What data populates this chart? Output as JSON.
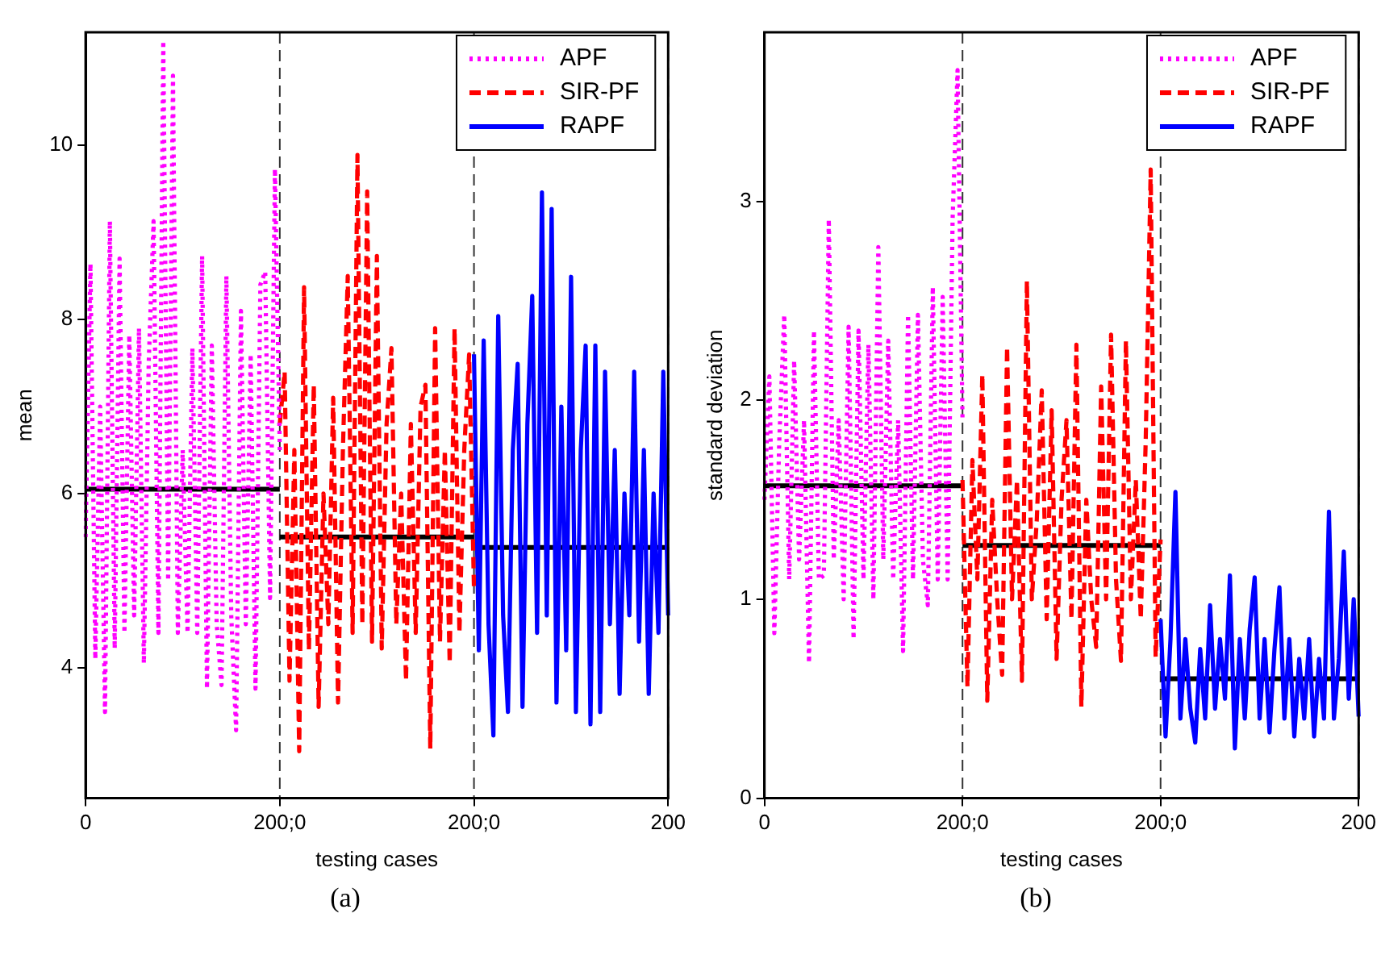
{
  "chart_data": [
    {
      "type": "line",
      "xlabel": "testing cases",
      "ylabel": "mean",
      "annotations": [
        "(a)"
      ],
      "ylim": [
        2.5,
        11.3
      ],
      "categories": [
        "0",
        null,
        null,
        null,
        null,
        null,
        null,
        null,
        null,
        null,
        null,
        null,
        null,
        null,
        null,
        null,
        null,
        null,
        null,
        null,
        null,
        null,
        null,
        null,
        null,
        null,
        null,
        null,
        null,
        null,
        null,
        null,
        null,
        null,
        null,
        null,
        null,
        null,
        null,
        null,
        "200;0",
        null,
        null,
        null,
        null,
        null,
        null,
        null,
        null,
        null,
        null,
        null,
        null,
        null,
        null,
        null,
        null,
        null,
        null,
        null,
        null,
        null,
        null,
        null,
        null,
        null,
        null,
        null,
        null,
        null,
        null,
        null,
        null,
        null,
        null,
        null,
        null,
        null,
        null,
        null,
        "200;0",
        null,
        null,
        null,
        null,
        null,
        null,
        null,
        null,
        null,
        null,
        null,
        null,
        null,
        null,
        null,
        null,
        null,
        null,
        null,
        null,
        null,
        null,
        null,
        null,
        null,
        null,
        null,
        null,
        null,
        null,
        null,
        null,
        null,
        null,
        null,
        null,
        null,
        null,
        null,
        "200"
      ],
      "yticks": [
        4,
        6,
        8,
        10
      ],
      "legend": "top right",
      "grid": "x",
      "series": [
        {
          "name": "APF",
          "color": "#ff00ff",
          "line_style": "dotted",
          "values": [
            5.5,
            8.64,
            4.1,
            7.0,
            3.49,
            9.13,
            4.22,
            8.7,
            4.4,
            7.82,
            4.6,
            7.9,
            4.05,
            7.5,
            9.13,
            4.4,
            11.2,
            5.0,
            10.8,
            4.4,
            6.5,
            4.4,
            7.67,
            4.4,
            8.73,
            3.76,
            7.7,
            4.5,
            3.8,
            8.5,
            4.6,
            3.28,
            8.1,
            4.5,
            7.6,
            3.76,
            8.4,
            8.55,
            4.8,
            9.73,
            6.5,
            null,
            null,
            null,
            null,
            null,
            null,
            null,
            null,
            null,
            null,
            null,
            null,
            null,
            null,
            null,
            null,
            null,
            null,
            null,
            null,
            null,
            null,
            null,
            null,
            null,
            null,
            null,
            null,
            null,
            null,
            null,
            null,
            null,
            null,
            null,
            null,
            null,
            null,
            null,
            null,
            null,
            null,
            null,
            null,
            null,
            null,
            null,
            null,
            null,
            null,
            null,
            null,
            null,
            null,
            null,
            null,
            null,
            null,
            null,
            null,
            null,
            null,
            null,
            null,
            null,
            null,
            null,
            null,
            null,
            null,
            null,
            null,
            null,
            null,
            null,
            null,
            null,
            null,
            null,
            null
          ]
        },
        {
          "name": "SIR-PF",
          "color": "#ff0000",
          "line_style": "dashed",
          "values": [
            null,
            null,
            null,
            null,
            null,
            null,
            null,
            null,
            null,
            null,
            null,
            null,
            null,
            null,
            null,
            null,
            null,
            null,
            null,
            null,
            null,
            null,
            null,
            null,
            null,
            null,
            null,
            null,
            null,
            null,
            null,
            null,
            null,
            null,
            null,
            null,
            null,
            null,
            null,
            null,
            6.8,
            7.4,
            3.85,
            6.5,
            3.04,
            8.37,
            4.2,
            7.25,
            3.55,
            6.0,
            4.5,
            7.1,
            3.6,
            6.5,
            8.5,
            4.4,
            9.89,
            4.5,
            9.47,
            4.3,
            8.73,
            4.22,
            6.8,
            7.67,
            4.5,
            6.0,
            3.85,
            6.8,
            4.4,
            7.0,
            7.25,
            3.07,
            7.9,
            4.3,
            6.5,
            4.05,
            7.9,
            4.4,
            6.5,
            7.6,
            4.9,
            null,
            null,
            null,
            null,
            null,
            null,
            null,
            null,
            null,
            null,
            null,
            null,
            null,
            null,
            null,
            null,
            null,
            null,
            null,
            null,
            null,
            null,
            null,
            null,
            null,
            null,
            null,
            null,
            null,
            null,
            null,
            null,
            null,
            null,
            null,
            null,
            null,
            null,
            null,
            null
          ]
        },
        {
          "name": "RAPF",
          "color": "#0000ff",
          "line_style": "solid",
          "values": [
            null,
            null,
            null,
            null,
            null,
            null,
            null,
            null,
            null,
            null,
            null,
            null,
            null,
            null,
            null,
            null,
            null,
            null,
            null,
            null,
            null,
            null,
            null,
            null,
            null,
            null,
            null,
            null,
            null,
            null,
            null,
            null,
            null,
            null,
            null,
            null,
            null,
            null,
            null,
            null,
            null,
            null,
            null,
            null,
            null,
            null,
            null,
            null,
            null,
            null,
            null,
            null,
            null,
            null,
            null,
            null,
            null,
            null,
            null,
            null,
            null,
            null,
            null,
            null,
            null,
            null,
            null,
            null,
            null,
            null,
            null,
            null,
            null,
            null,
            null,
            null,
            null,
            null,
            null,
            null,
            7.6,
            4.2,
            7.76,
            4.5,
            3.22,
            8.04,
            4.6,
            3.49,
            6.5,
            7.49,
            3.55,
            6.8,
            8.27,
            4.4,
            9.46,
            4.6,
            9.27,
            3.6,
            7.0,
            4.2,
            8.49,
            3.49,
            6.5,
            7.7,
            3.35,
            7.7,
            3.49,
            7.4,
            4.5,
            6.5,
            3.7,
            6.0,
            4.6,
            7.4,
            4.3,
            6.5,
            3.7,
            6.0,
            4.4,
            7.4,
            4.6
          ]
        },
        {
          "color": "#000000",
          "line_style": "solid",
          "values": [
            6.05,
            6.05,
            6.05,
            6.05,
            6.05,
            6.05,
            6.05,
            6.05,
            6.05,
            6.05,
            6.05,
            6.05,
            6.05,
            6.05,
            6.05,
            6.05,
            6.05,
            6.05,
            6.05,
            6.05,
            6.05,
            6.05,
            6.05,
            6.05,
            6.05,
            6.05,
            6.05,
            6.05,
            6.05,
            6.05,
            6.05,
            6.05,
            6.05,
            6.05,
            6.05,
            6.05,
            6.05,
            6.05,
            6.05,
            6.05,
            6.05,
            null,
            null,
            null,
            null,
            null,
            null,
            null,
            null,
            null,
            null,
            null,
            null,
            null,
            null,
            null,
            null,
            null,
            null,
            null,
            null,
            null,
            null,
            null,
            null,
            null,
            null,
            null,
            null,
            null,
            null,
            null,
            null,
            null,
            null,
            null,
            null,
            null,
            null,
            null,
            null,
            null,
            null,
            null,
            null,
            null,
            null,
            null,
            null,
            null,
            null,
            null,
            null,
            null,
            null,
            null,
            null,
            null,
            null,
            null,
            null,
            null,
            null,
            null,
            null,
            null,
            null,
            null,
            null,
            null,
            null,
            null,
            null,
            null,
            null,
            null,
            null,
            null,
            null,
            null,
            null
          ]
        },
        {
          "color": "#000000",
          "line_style": "solid",
          "values": [
            null,
            null,
            null,
            null,
            null,
            null,
            null,
            null,
            null,
            null,
            null,
            null,
            null,
            null,
            null,
            null,
            null,
            null,
            null,
            null,
            null,
            null,
            null,
            null,
            null,
            null,
            null,
            null,
            null,
            null,
            null,
            null,
            null,
            null,
            null,
            null,
            null,
            null,
            null,
            null,
            5.5,
            5.5,
            5.5,
            5.5,
            5.5,
            5.5,
            5.5,
            5.5,
            5.5,
            5.5,
            5.5,
            5.5,
            5.5,
            5.5,
            5.5,
            5.5,
            5.5,
            5.5,
            5.5,
            5.5,
            5.5,
            5.5,
            5.5,
            5.5,
            5.5,
            5.5,
            5.5,
            5.5,
            5.5,
            5.5,
            5.5,
            5.5,
            5.5,
            5.5,
            5.5,
            5.5,
            5.5,
            5.5,
            5.5,
            5.5,
            5.5,
            null,
            null,
            null,
            null,
            null,
            null,
            null,
            null,
            null,
            null,
            null,
            null,
            null,
            null,
            null,
            null,
            null,
            null,
            null,
            null,
            null,
            null,
            null,
            null,
            null,
            null,
            null,
            null,
            null,
            null,
            null,
            null,
            null,
            null,
            null,
            null,
            null,
            null,
            null,
            null
          ]
        },
        {
          "color": "#000000",
          "line_style": "solid",
          "values": [
            null,
            null,
            null,
            null,
            null,
            null,
            null,
            null,
            null,
            null,
            null,
            null,
            null,
            null,
            null,
            null,
            null,
            null,
            null,
            null,
            null,
            null,
            null,
            null,
            null,
            null,
            null,
            null,
            null,
            null,
            null,
            null,
            null,
            null,
            null,
            null,
            null,
            null,
            null,
            null,
            null,
            null,
            null,
            null,
            null,
            null,
            null,
            null,
            null,
            null,
            null,
            null,
            null,
            null,
            null,
            null,
            null,
            null,
            null,
            null,
            null,
            null,
            null,
            null,
            null,
            null,
            null,
            null,
            null,
            null,
            null,
            null,
            null,
            null,
            null,
            null,
            null,
            null,
            null,
            null,
            5.38,
            5.38,
            5.38,
            5.38,
            5.38,
            5.38,
            5.38,
            5.38,
            5.38,
            5.38,
            5.38,
            5.38,
            5.38,
            5.38,
            5.38,
            5.38,
            5.38,
            5.38,
            5.38,
            5.38,
            5.38,
            5.38,
            5.38,
            5.38,
            5.38,
            5.38,
            5.38,
            5.38,
            5.38,
            5.38,
            5.38,
            5.38,
            5.38,
            5.38,
            5.38,
            5.38,
            5.38,
            5.38,
            5.38,
            5.38,
            5.38
          ]
        }
      ]
    },
    {
      "type": "line",
      "xlabel": "testing cases",
      "ylabel": "standard deviation",
      "annotations": [
        "(b)"
      ],
      "ylim": [
        0,
        3.85
      ],
      "categories": [
        "0",
        null,
        null,
        null,
        null,
        null,
        null,
        null,
        null,
        null,
        null,
        null,
        null,
        null,
        null,
        null,
        null,
        null,
        null,
        null,
        null,
        null,
        null,
        null,
        null,
        null,
        null,
        null,
        null,
        null,
        null,
        null,
        null,
        null,
        null,
        null,
        null,
        null,
        null,
        null,
        "200;0",
        null,
        null,
        null,
        null,
        null,
        null,
        null,
        null,
        null,
        null,
        null,
        null,
        null,
        null,
        null,
        null,
        null,
        null,
        null,
        null,
        null,
        null,
        null,
        null,
        null,
        null,
        null,
        null,
        null,
        null,
        null,
        null,
        null,
        null,
        null,
        null,
        null,
        null,
        null,
        "200;0",
        null,
        null,
        null,
        null,
        null,
        null,
        null,
        null,
        null,
        null,
        null,
        null,
        null,
        null,
        null,
        null,
        null,
        null,
        null,
        null,
        null,
        null,
        null,
        null,
        null,
        null,
        null,
        null,
        null,
        null,
        null,
        null,
        null,
        null,
        null,
        null,
        null,
        null,
        null,
        "200"
      ],
      "yticks": [
        0,
        1,
        2,
        3
      ],
      "legend": "top right",
      "grid": "x",
      "series": [
        {
          "name": "APF",
          "color": "#ff00ff",
          "line_style": "dotted",
          "values": [
            1.5,
            2.12,
            0.83,
            1.8,
            2.43,
            1.1,
            2.2,
            1.2,
            1.9,
            0.68,
            2.35,
            1.1,
            1.12,
            2.91,
            1.2,
            1.9,
            1.0,
            2.37,
            0.8,
            2.35,
            1.1,
            2.28,
            1.0,
            2.77,
            1.2,
            2.3,
            1.1,
            1.9,
            0.74,
            2.43,
            1.1,
            2.43,
            1.2,
            0.97,
            2.57,
            1.1,
            2.52,
            1.1,
            2.91,
            3.66,
            1.9,
            null,
            null,
            null,
            null,
            null,
            null,
            null,
            null,
            null,
            null,
            null,
            null,
            null,
            null,
            null,
            null,
            null,
            null,
            null,
            null,
            null,
            null,
            null,
            null,
            null,
            null,
            null,
            null,
            null,
            null,
            null,
            null,
            null,
            null,
            null,
            null,
            null,
            null,
            null,
            null,
            null,
            null,
            null,
            null,
            null,
            null,
            null,
            null,
            null,
            null,
            null,
            null,
            null,
            null,
            null,
            null,
            null,
            null,
            null,
            null,
            null,
            null,
            null,
            null,
            null,
            null,
            null,
            null,
            null,
            null,
            null,
            null,
            null,
            null,
            null,
            null,
            null,
            null,
            null,
            null
          ]
        },
        {
          "name": "SIR-PF",
          "color": "#ff0000",
          "line_style": "dashed",
          "values": [
            null,
            null,
            null,
            null,
            null,
            null,
            null,
            null,
            null,
            null,
            null,
            null,
            null,
            null,
            null,
            null,
            null,
            null,
            null,
            null,
            null,
            null,
            null,
            null,
            null,
            null,
            null,
            null,
            null,
            null,
            null,
            null,
            null,
            null,
            null,
            null,
            null,
            null,
            null,
            null,
            1.6,
            0.56,
            1.7,
            1.1,
            2.13,
            0.49,
            1.5,
            1.0,
            0.62,
            2.27,
            1.0,
            1.6,
            0.59,
            2.6,
            1.0,
            1.4,
            2.05,
            0.9,
            1.95,
            0.7,
            1.5,
            1.9,
            0.9,
            2.28,
            0.46,
            1.5,
            1.0,
            0.76,
            2.07,
            1.0,
            2.33,
            1.1,
            0.69,
            2.3,
            1.0,
            1.6,
            0.9,
            1.8,
            3.16,
            0.71,
            1.3,
            null,
            null,
            null,
            null,
            null,
            null,
            null,
            null,
            null,
            null,
            null,
            null,
            null,
            null,
            null,
            null,
            null,
            null,
            null,
            null,
            null,
            null,
            null,
            null,
            null,
            null,
            null,
            null,
            null,
            null,
            null,
            null,
            null,
            null,
            null,
            null,
            null,
            null,
            null,
            null
          ]
        },
        {
          "name": "RAPF",
          "color": "#0000ff",
          "line_style": "solid",
          "values": [
            null,
            null,
            null,
            null,
            null,
            null,
            null,
            null,
            null,
            null,
            null,
            null,
            null,
            null,
            null,
            null,
            null,
            null,
            null,
            null,
            null,
            null,
            null,
            null,
            null,
            null,
            null,
            null,
            null,
            null,
            null,
            null,
            null,
            null,
            null,
            null,
            null,
            null,
            null,
            null,
            null,
            null,
            null,
            null,
            null,
            null,
            null,
            null,
            null,
            null,
            null,
            null,
            null,
            null,
            null,
            null,
            null,
            null,
            null,
            null,
            null,
            null,
            null,
            null,
            null,
            null,
            null,
            null,
            null,
            null,
            null,
            null,
            null,
            null,
            null,
            null,
            null,
            null,
            null,
            null,
            0.9,
            0.31,
            0.8,
            1.54,
            0.4,
            0.8,
            0.45,
            0.28,
            0.75,
            0.4,
            0.97,
            0.45,
            0.8,
            0.5,
            1.12,
            0.25,
            0.8,
            0.4,
            0.85,
            1.11,
            0.4,
            0.8,
            0.33,
            0.75,
            1.06,
            0.4,
            0.8,
            0.31,
            0.7,
            0.4,
            0.8,
            0.31,
            0.7,
            0.4,
            1.44,
            0.4,
            0.7,
            1.24,
            0.5,
            1.0,
            0.41
          ]
        },
        {
          "color": "#000000",
          "line_style": "solid",
          "values": [
            1.57,
            1.57,
            1.57,
            1.57,
            1.57,
            1.57,
            1.57,
            1.57,
            1.57,
            1.57,
            1.57,
            1.57,
            1.57,
            1.57,
            1.57,
            1.57,
            1.57,
            1.57,
            1.57,
            1.57,
            1.57,
            1.57,
            1.57,
            1.57,
            1.57,
            1.57,
            1.57,
            1.57,
            1.57,
            1.57,
            1.57,
            1.57,
            1.57,
            1.57,
            1.57,
            1.57,
            1.57,
            1.57,
            1.57,
            1.57,
            1.57,
            null,
            null,
            null,
            null,
            null,
            null,
            null,
            null,
            null,
            null,
            null,
            null,
            null,
            null,
            null,
            null,
            null,
            null,
            null,
            null,
            null,
            null,
            null,
            null,
            null,
            null,
            null,
            null,
            null,
            null,
            null,
            null,
            null,
            null,
            null,
            null,
            null,
            null,
            null,
            null,
            null,
            null,
            null,
            null,
            null,
            null,
            null,
            null,
            null,
            null,
            null,
            null,
            null,
            null,
            null,
            null,
            null,
            null,
            null,
            null,
            null,
            null,
            null,
            null,
            null,
            null,
            null,
            null,
            null,
            null,
            null,
            null,
            null,
            null,
            null,
            null,
            null,
            null,
            null,
            null
          ]
        },
        {
          "color": "#000000",
          "line_style": "solid",
          "values": [
            null,
            null,
            null,
            null,
            null,
            null,
            null,
            null,
            null,
            null,
            null,
            null,
            null,
            null,
            null,
            null,
            null,
            null,
            null,
            null,
            null,
            null,
            null,
            null,
            null,
            null,
            null,
            null,
            null,
            null,
            null,
            null,
            null,
            null,
            null,
            null,
            null,
            null,
            null,
            null,
            1.27,
            1.27,
            1.27,
            1.27,
            1.27,
            1.27,
            1.27,
            1.27,
            1.27,
            1.27,
            1.27,
            1.27,
            1.27,
            1.27,
            1.27,
            1.27,
            1.27,
            1.27,
            1.27,
            1.27,
            1.27,
            1.27,
            1.27,
            1.27,
            1.27,
            1.27,
            1.27,
            1.27,
            1.27,
            1.27,
            1.27,
            1.27,
            1.27,
            1.27,
            1.27,
            1.27,
            1.27,
            1.27,
            1.27,
            1.27,
            1.27,
            null,
            null,
            null,
            null,
            null,
            null,
            null,
            null,
            null,
            null,
            null,
            null,
            null,
            null,
            null,
            null,
            null,
            null,
            null,
            null,
            null,
            null,
            null,
            null,
            null,
            null,
            null,
            null,
            null,
            null,
            null,
            null,
            null,
            null,
            null,
            null,
            null,
            null,
            null,
            null
          ]
        },
        {
          "color": "#000000",
          "line_style": "solid",
          "values": [
            null,
            null,
            null,
            null,
            null,
            null,
            null,
            null,
            null,
            null,
            null,
            null,
            null,
            null,
            null,
            null,
            null,
            null,
            null,
            null,
            null,
            null,
            null,
            null,
            null,
            null,
            null,
            null,
            null,
            null,
            null,
            null,
            null,
            null,
            null,
            null,
            null,
            null,
            null,
            null,
            null,
            null,
            null,
            null,
            null,
            null,
            null,
            null,
            null,
            null,
            null,
            null,
            null,
            null,
            null,
            null,
            null,
            null,
            null,
            null,
            null,
            null,
            null,
            null,
            null,
            null,
            null,
            null,
            null,
            null,
            null,
            null,
            null,
            null,
            null,
            null,
            null,
            null,
            null,
            null,
            0.6,
            0.6,
            0.6,
            0.6,
            0.6,
            0.6,
            0.6,
            0.6,
            0.6,
            0.6,
            0.6,
            0.6,
            0.6,
            0.6,
            0.6,
            0.6,
            0.6,
            0.6,
            0.6,
            0.6,
            0.6,
            0.6,
            0.6,
            0.6,
            0.6,
            0.6,
            0.6,
            0.6,
            0.6,
            0.6,
            0.6,
            0.6,
            0.6,
            0.6,
            0.6,
            0.6,
            0.6,
            0.6,
            0.6,
            0.6,
            0.6
          ]
        }
      ]
    }
  ]
}
